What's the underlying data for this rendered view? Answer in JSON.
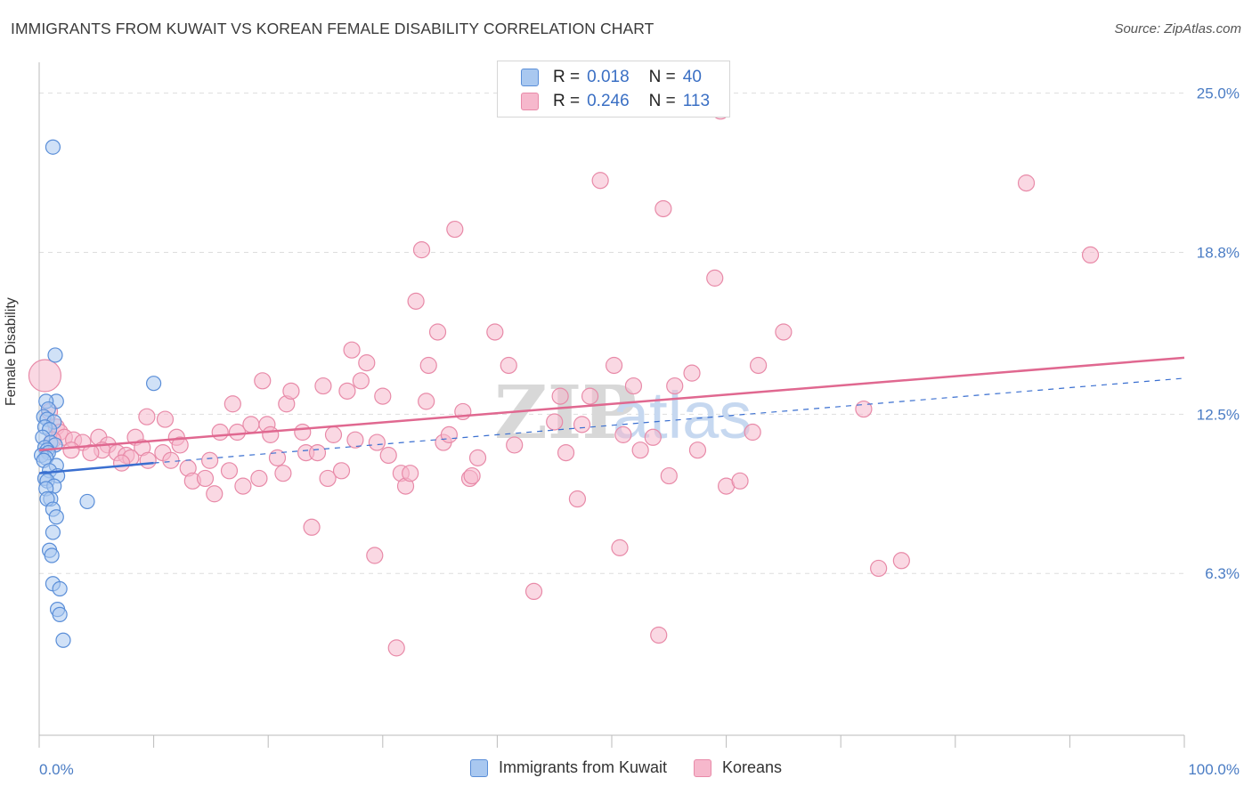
{
  "title": "IMMIGRANTS FROM KUWAIT VS KOREAN FEMALE DISABILITY CORRELATION CHART",
  "source": "Source: ZipAtlas.com",
  "watermark": {
    "zip": "ZIP",
    "atlas": "atlas"
  },
  "legend": {
    "rows": [
      {
        "r_label": "R =",
        "r_value": "0.018",
        "n_label": "N =",
        "n_value": "40"
      },
      {
        "r_label": "R =",
        "r_value": "0.246",
        "n_label": "N =",
        "n_value": "113"
      }
    ]
  },
  "bottom_legend": [
    "Immigrants from Kuwait",
    "Koreans"
  ],
  "colors": {
    "blue_fill": "#a9c8f0",
    "blue_stroke": "#5a8ed8",
    "blue_line": "#3a6fd0",
    "pink_fill": "#f6b8cc",
    "pink_stroke": "#e88aa8",
    "pink_line": "#e06890",
    "tick_text": "#4a7cc4",
    "grid": "#dddddd"
  },
  "chart_data": {
    "type": "scatter",
    "title": "IMMIGRANTS FROM KUWAIT VS KOREAN FEMALE DISABILITY CORRELATION CHART",
    "xlabel": "",
    "ylabel": "Female Disability",
    "xlim": [
      0,
      100
    ],
    "ylim": [
      0,
      26.2
    ],
    "x_tick_labels": [
      "0.0%",
      "100.0%"
    ],
    "y_ticks": [
      6.3,
      12.5,
      18.8,
      25.0
    ],
    "y_tick_labels": [
      "6.3%",
      "12.5%",
      "18.8%",
      "25.0%"
    ],
    "grid": true,
    "legend_position": "top-center",
    "series": [
      {
        "name": "Immigrants from Kuwait",
        "points": [
          [
            1.2,
            22.9
          ],
          [
            1.4,
            14.8
          ],
          [
            10.0,
            13.7
          ],
          [
            1.5,
            13.0
          ],
          [
            0.6,
            13.0
          ],
          [
            0.8,
            12.7
          ],
          [
            0.4,
            12.4
          ],
          [
            0.7,
            12.3
          ],
          [
            1.3,
            12.2
          ],
          [
            0.5,
            12.0
          ],
          [
            0.9,
            11.9
          ],
          [
            0.3,
            11.6
          ],
          [
            1.0,
            11.4
          ],
          [
            1.4,
            11.3
          ],
          [
            0.5,
            11.2
          ],
          [
            0.7,
            11.1
          ],
          [
            0.8,
            11.0
          ],
          [
            0.2,
            10.9
          ],
          [
            0.6,
            10.8
          ],
          [
            0.4,
            10.7
          ],
          [
            1.5,
            10.5
          ],
          [
            0.9,
            10.3
          ],
          [
            1.6,
            10.1
          ],
          [
            0.5,
            10.0
          ],
          [
            0.7,
            9.9
          ],
          [
            1.3,
            9.7
          ],
          [
            0.6,
            9.6
          ],
          [
            1.0,
            9.2
          ],
          [
            0.7,
            9.2
          ],
          [
            4.2,
            9.1
          ],
          [
            1.2,
            8.8
          ],
          [
            1.5,
            8.5
          ],
          [
            1.2,
            7.9
          ],
          [
            0.9,
            7.2
          ],
          [
            1.1,
            7.0
          ],
          [
            1.2,
            5.9
          ],
          [
            1.8,
            5.7
          ],
          [
            1.6,
            4.9
          ],
          [
            1.8,
            4.7
          ],
          [
            2.1,
            3.7
          ]
        ]
      },
      {
        "name": "Koreans",
        "points": [
          [
            0.5,
            14.0
          ],
          [
            0.9,
            12.6
          ],
          [
            1.5,
            12.0
          ],
          [
            1.8,
            11.8
          ],
          [
            2.2,
            11.6
          ],
          [
            3.0,
            11.5
          ],
          [
            3.8,
            11.4
          ],
          [
            5.2,
            11.6
          ],
          [
            6.0,
            11.3
          ],
          [
            5.5,
            11.1
          ],
          [
            6.8,
            11.0
          ],
          [
            7.6,
            10.9
          ],
          [
            8.4,
            11.6
          ],
          [
            9.0,
            11.2
          ],
          [
            8.0,
            10.8
          ],
          [
            9.5,
            10.7
          ],
          [
            7.2,
            10.6
          ],
          [
            4.5,
            11.0
          ],
          [
            2.8,
            11.1
          ],
          [
            1.2,
            11.5
          ],
          [
            9.4,
            12.4
          ],
          [
            10.8,
            11.0
          ],
          [
            11.0,
            12.3
          ],
          [
            11.5,
            10.7
          ],
          [
            12.0,
            11.6
          ],
          [
            12.3,
            11.3
          ],
          [
            13.0,
            10.4
          ],
          [
            13.4,
            9.9
          ],
          [
            14.5,
            10.0
          ],
          [
            14.9,
            10.7
          ],
          [
            15.3,
            9.4
          ],
          [
            15.8,
            11.8
          ],
          [
            16.6,
            10.3
          ],
          [
            16.9,
            12.9
          ],
          [
            17.3,
            11.8
          ],
          [
            17.8,
            9.7
          ],
          [
            18.5,
            12.1
          ],
          [
            19.2,
            10.0
          ],
          [
            19.5,
            13.8
          ],
          [
            19.9,
            12.1
          ],
          [
            20.2,
            11.7
          ],
          [
            20.8,
            10.8
          ],
          [
            21.3,
            10.2
          ],
          [
            21.6,
            12.9
          ],
          [
            22.0,
            13.4
          ],
          [
            23.0,
            11.8
          ],
          [
            23.3,
            11.0
          ],
          [
            23.8,
            8.1
          ],
          [
            24.3,
            11.0
          ],
          [
            24.8,
            13.6
          ],
          [
            25.2,
            10.0
          ],
          [
            25.7,
            11.7
          ],
          [
            26.4,
            10.3
          ],
          [
            26.9,
            13.4
          ],
          [
            27.3,
            15.0
          ],
          [
            27.6,
            11.5
          ],
          [
            28.1,
            13.8
          ],
          [
            28.6,
            14.5
          ],
          [
            29.3,
            7.0
          ],
          [
            29.5,
            11.4
          ],
          [
            30.0,
            13.2
          ],
          [
            30.5,
            10.9
          ],
          [
            31.2,
            3.4
          ],
          [
            31.6,
            10.2
          ],
          [
            32.0,
            9.7
          ],
          [
            32.4,
            10.2
          ],
          [
            32.9,
            16.9
          ],
          [
            33.4,
            18.9
          ],
          [
            33.8,
            13.0
          ],
          [
            34.0,
            14.4
          ],
          [
            34.8,
            15.7
          ],
          [
            35.3,
            11.4
          ],
          [
            35.8,
            11.7
          ],
          [
            36.3,
            19.7
          ],
          [
            37.0,
            12.6
          ],
          [
            37.6,
            10.0
          ],
          [
            37.8,
            10.1
          ],
          [
            38.3,
            10.8
          ],
          [
            39.8,
            15.7
          ],
          [
            41.0,
            14.4
          ],
          [
            41.5,
            11.3
          ],
          [
            43.2,
            5.6
          ],
          [
            45.0,
            12.2
          ],
          [
            45.5,
            13.2
          ],
          [
            46.0,
            11.0
          ],
          [
            47.0,
            9.2
          ],
          [
            47.4,
            12.1
          ],
          [
            48.1,
            13.2
          ],
          [
            49.0,
            21.6
          ],
          [
            50.2,
            14.4
          ],
          [
            50.7,
            7.3
          ],
          [
            51.0,
            11.7
          ],
          [
            51.9,
            13.6
          ],
          [
            52.5,
            11.1
          ],
          [
            53.6,
            11.6
          ],
          [
            54.1,
            3.9
          ],
          [
            54.5,
            20.5
          ],
          [
            55.0,
            10.1
          ],
          [
            55.5,
            13.6
          ],
          [
            57.0,
            14.1
          ],
          [
            57.5,
            11.1
          ],
          [
            59.0,
            17.8
          ],
          [
            60.0,
            9.7
          ],
          [
            61.2,
            9.9
          ],
          [
            62.3,
            11.8
          ],
          [
            62.8,
            14.4
          ],
          [
            65.0,
            15.7
          ],
          [
            72.0,
            12.7
          ],
          [
            73.3,
            6.5
          ],
          [
            75.3,
            6.8
          ],
          [
            86.2,
            21.5
          ],
          [
            91.8,
            18.7
          ],
          [
            59.5,
            24.3
          ]
        ]
      }
    ],
    "trend_lines": [
      {
        "series": "Immigrants from Kuwait",
        "solid": [
          [
            0,
            10.2
          ],
          [
            10,
            10.6
          ]
        ],
        "dashed": [
          [
            10,
            10.6
          ],
          [
            100,
            13.9
          ]
        ]
      },
      {
        "series": "Koreans",
        "solid": [
          [
            0,
            11.1
          ],
          [
            100,
            14.7
          ]
        ]
      }
    ]
  }
}
